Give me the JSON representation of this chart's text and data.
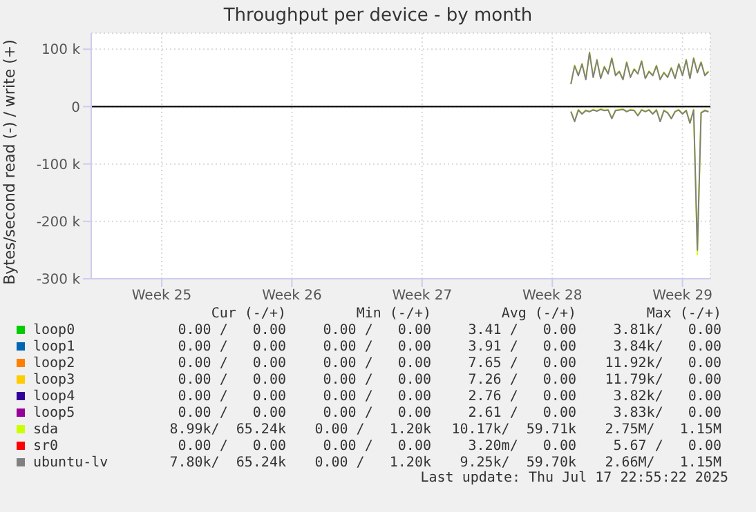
{
  "chart_data": {
    "type": "line",
    "title": "Throughput per device - by month",
    "ylabel": "Bytes/second read (-) / write (+)",
    "x": [
      "2025-07-10T12:00",
      "2025-07-10T16:48",
      "2025-07-10T21:36",
      "2025-07-11T02:24",
      "2025-07-11T07:12",
      "2025-07-11T12:00",
      "2025-07-11T16:48",
      "2025-07-11T21:36",
      "2025-07-12T02:24",
      "2025-07-12T07:12",
      "2025-07-12T12:00",
      "2025-07-12T16:48",
      "2025-07-12T21:36",
      "2025-07-13T02:24",
      "2025-07-13T07:12",
      "2025-07-13T12:00",
      "2025-07-13T16:48",
      "2025-07-13T21:36",
      "2025-07-14T02:24",
      "2025-07-14T07:12",
      "2025-07-14T12:00",
      "2025-07-14T16:48",
      "2025-07-14T21:36",
      "2025-07-15T02:24",
      "2025-07-15T07:12",
      "2025-07-15T12:00",
      "2025-07-15T16:48",
      "2025-07-15T21:36",
      "2025-07-16T02:24",
      "2025-07-16T07:12",
      "2025-07-16T12:00",
      "2025-07-16T16:48",
      "2025-07-16T21:36",
      "2025-07-17T02:24",
      "2025-07-17T07:12",
      "2025-07-17T12:00",
      "2025-07-17T16:48",
      "2025-07-17T21:36"
    ],
    "xlim": [
      "2025-06-14T17:00",
      "2025-07-18T00:00"
    ],
    "xticks": [
      {
        "value": "2025-06-18T12:00",
        "label": "Week 25"
      },
      {
        "value": "2025-06-25T12:00",
        "label": "Week 26"
      },
      {
        "value": "2025-07-02T12:00",
        "label": "Week 27"
      },
      {
        "value": "2025-07-09T12:00",
        "label": "Week 28"
      },
      {
        "value": "2025-07-16T12:00",
        "label": "Week 29"
      }
    ],
    "ylim": [
      -300000,
      128000
    ],
    "yticks": [
      {
        "value": -300000,
        "label": "-300 k"
      },
      {
        "value": -200000,
        "label": "-200 k"
      },
      {
        "value": -100000,
        "label": "-100 k"
      },
      0,
      {
        "value": 100000,
        "label": "100 k"
      }
    ],
    "grid": true,
    "legend": "bottom",
    "marker": "none",
    "line_style": "solid",
    "ref_lines": [
      {
        "axis": "y",
        "value": 0,
        "color": "#000000"
      }
    ],
    "series": [
      {
        "name": "loop0",
        "color": "#00cc00",
        "values": [
          null,
          null,
          null,
          null,
          null,
          null,
          null,
          null,
          null,
          null,
          null,
          null,
          null,
          null,
          null,
          null,
          null,
          null,
          null,
          null,
          null,
          null,
          null,
          null,
          null,
          null,
          null,
          null,
          null,
          null,
          null,
          null,
          null,
          null,
          null,
          null,
          null,
          null
        ]
      },
      {
        "name": "loop1",
        "color": "#0066b3",
        "values": [
          null,
          null,
          null,
          null,
          null,
          null,
          null,
          null,
          null,
          null,
          null,
          null,
          null,
          null,
          null,
          null,
          null,
          null,
          null,
          null,
          null,
          null,
          null,
          null,
          null,
          null,
          null,
          null,
          null,
          null,
          null,
          null,
          null,
          null,
          null,
          null,
          null,
          null
        ]
      },
      {
        "name": "loop2",
        "color": "#ff8000",
        "values": [
          null,
          null,
          null,
          null,
          null,
          null,
          null,
          null,
          null,
          null,
          null,
          null,
          null,
          null,
          null,
          null,
          null,
          null,
          null,
          null,
          null,
          null,
          null,
          null,
          null,
          null,
          null,
          null,
          null,
          null,
          null,
          null,
          null,
          null,
          null,
          null,
          null,
          null
        ]
      },
      {
        "name": "loop3",
        "color": "#ffcc00",
        "values": [
          null,
          null,
          null,
          null,
          null,
          null,
          null,
          null,
          null,
          null,
          null,
          null,
          null,
          null,
          null,
          null,
          null,
          null,
          null,
          null,
          null,
          null,
          null,
          null,
          null,
          null,
          null,
          null,
          null,
          null,
          null,
          null,
          null,
          null,
          null,
          null,
          null,
          null
        ]
      },
      {
        "name": "loop4",
        "color": "#330099",
        "values": [
          null,
          null,
          null,
          null,
          null,
          null,
          null,
          null,
          null,
          null,
          null,
          null,
          null,
          null,
          null,
          null,
          null,
          null,
          null,
          null,
          null,
          null,
          null,
          null,
          null,
          null,
          null,
          null,
          null,
          null,
          null,
          null,
          null,
          null,
          null,
          null,
          null,
          null
        ]
      },
      {
        "name": "loop5",
        "color": "#990099",
        "values": [
          null,
          null,
          null,
          null,
          null,
          null,
          null,
          null,
          null,
          null,
          null,
          null,
          null,
          null,
          null,
          null,
          null,
          null,
          null,
          null,
          null,
          null,
          null,
          null,
          null,
          null,
          null,
          null,
          null,
          null,
          null,
          null,
          null,
          null,
          null,
          null,
          null,
          null
        ]
      },
      {
        "name": "sda",
        "color": "#ccff00",
        "values": [
          40000,
          72000,
          55000,
          75000,
          48000,
          95000,
          52000,
          82000,
          50000,
          70000,
          58000,
          85000,
          55000,
          62000,
          48000,
          78000,
          52000,
          66000,
          58000,
          80000,
          50000,
          62000,
          55000,
          72000,
          48000,
          60000,
          52000,
          68000,
          50000,
          75000,
          55000,
          82000,
          50000,
          85000,
          60000,
          78000,
          55000,
          62000
        ]
      },
      {
        "color": "#ccff00",
        "values": [
          -8000,
          -25000,
          -5000,
          -12000,
          -6000,
          -8000,
          -5000,
          -7000,
          -4000,
          -6000,
          -5000,
          -20000,
          -6000,
          -5000,
          -4000,
          -8000,
          -5000,
          -6000,
          -15000,
          -5000,
          -8000,
          -5000,
          -12000,
          -5000,
          -25000,
          -6000,
          -10000,
          -20000,
          -8000,
          -5000,
          -12000,
          -6000,
          -28000,
          -5000,
          -258000,
          -10000,
          -6000,
          -8000
        ]
      },
      {
        "name": "sr0",
        "color": "#ff0000",
        "values": [
          null,
          null,
          null,
          null,
          null,
          null,
          null,
          null,
          null,
          null,
          null,
          null,
          null,
          null,
          null,
          null,
          null,
          null,
          null,
          null,
          null,
          null,
          null,
          null,
          null,
          null,
          null,
          null,
          null,
          null,
          null,
          null,
          null,
          null,
          null,
          null,
          null,
          null
        ]
      },
      {
        "name": "ubuntu-lv",
        "color": "#808080",
        "values": [
          39000,
          71000,
          54000,
          74000,
          47000,
          94000,
          51000,
          81000,
          49000,
          69000,
          57000,
          84000,
          54000,
          61000,
          47000,
          77000,
          51000,
          65000,
          57000,
          79000,
          49000,
          61000,
          54000,
          71000,
          47000,
          59000,
          51000,
          67000,
          49000,
          74000,
          54000,
          81000,
          49000,
          84000,
          59000,
          77000,
          54000,
          61000
        ]
      },
      {
        "color": "#808080",
        "values": [
          -9000,
          -26000,
          -6000,
          -13000,
          -7000,
          -9000,
          -6000,
          -8000,
          -5000,
          -7000,
          -6000,
          -21000,
          -7000,
          -6000,
          -5000,
          -9000,
          -6000,
          -7000,
          -16000,
          -6000,
          -9000,
          -6000,
          -13000,
          -6000,
          -26000,
          -7000,
          -11000,
          -21000,
          -9000,
          -6000,
          -13000,
          -7000,
          -29000,
          -6000,
          -250000,
          -11000,
          -7000,
          -9000
        ]
      }
    ],
    "annotations": [
      "Cur (-/+)",
      "Min (-/+)",
      "Avg (-/+)",
      "Max (-/+)",
      "0.00 /   0.00",
      "0.00 /   0.00",
      "3.41 /   0.00",
      "3.81k/   0.00",
      "0.00 /   0.00",
      "0.00 /   0.00",
      "3.91 /   0.00",
      "3.84k/   0.00",
      "0.00 /   0.00",
      "0.00 /   0.00",
      "7.65 /   0.00",
      "11.92k/   0.00",
      "0.00 /   0.00",
      "0.00 /   0.00",
      "7.26 /   0.00",
      "11.79k/   0.00",
      "0.00 /   0.00",
      "0.00 /   0.00",
      "2.76 /   0.00",
      "3.82k/   0.00",
      "0.00 /   0.00",
      "0.00 /   0.00",
      "2.61 /   0.00",
      "3.83k/   0.00",
      "8.99k/  65.24k",
      "0.00 /   1.20k",
      "10.17k/  59.71k",
      "2.75M/   1.15M",
      "0.00 /   0.00",
      "0.00 /   0.00",
      "3.20m/   0.00",
      "5.67 /   0.00",
      "7.80k/  65.24k",
      "0.00 /   1.20k",
      "9.25k/  59.70k",
      "2.66M/   1.15M",
      "Last update: Thu Jul 17 22:55:22 2025"
    ]
  }
}
